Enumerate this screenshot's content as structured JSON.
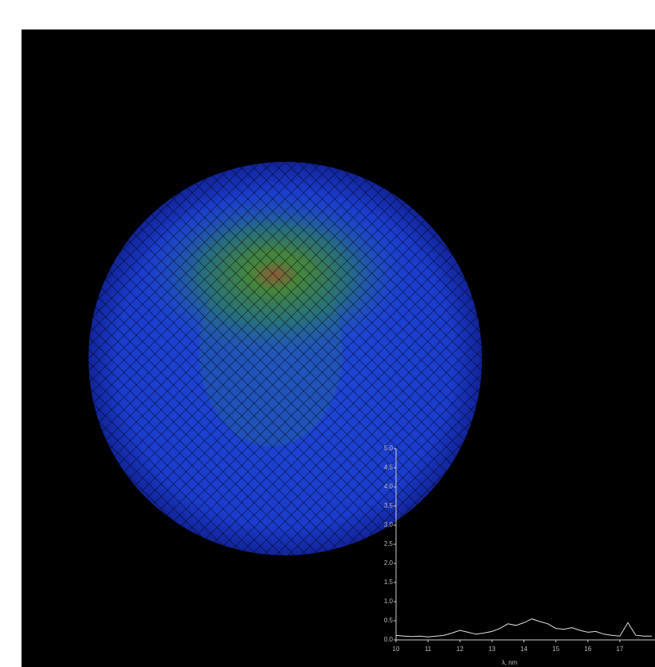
{
  "chart_data": {
    "type": "line",
    "xlabel": "λ, nm",
    "x": [
      10,
      10.25,
      10.5,
      10.75,
      11,
      11.25,
      11.5,
      11.75,
      12,
      12.25,
      12.5,
      12.75,
      13,
      13.25,
      13.5,
      13.75,
      14,
      14.25,
      14.5,
      14.75,
      15,
      15.25,
      15.5,
      15.75,
      16,
      16.25,
      16.5,
      16.75,
      17,
      17.25,
      17.5,
      17.75,
      18
    ],
    "series": [
      {
        "color": "#e0e0e0",
        "values": [
          0.12,
          0.1,
          0.09,
          0.1,
          0.08,
          0.1,
          0.12,
          0.18,
          0.25,
          0.2,
          0.15,
          0.18,
          0.22,
          0.3,
          0.42,
          0.38,
          0.45,
          0.55,
          0.48,
          0.42,
          0.3,
          0.28,
          0.32,
          0.25,
          0.2,
          0.22,
          0.15,
          0.12,
          0.1,
          0.45,
          0.12,
          0.1,
          0.1
        ]
      }
    ],
    "xlim": [
      10,
      18.1
    ],
    "ylim": [
      0,
      5
    ],
    "xticks": [
      10,
      11,
      12,
      13,
      14,
      15,
      16,
      17
    ],
    "yticks": [
      {
        "value": 0,
        "label": "0.0"
      },
      0.5,
      {
        "value": 1,
        "label": "1.0"
      },
      1.5,
      {
        "value": 2,
        "label": "2.0"
      },
      2.5,
      {
        "value": 3,
        "label": "3.0"
      },
      3.5,
      {
        "value": 4,
        "label": "4.0"
      },
      4.5,
      {
        "value": 5,
        "label": "5.0"
      }
    ]
  }
}
